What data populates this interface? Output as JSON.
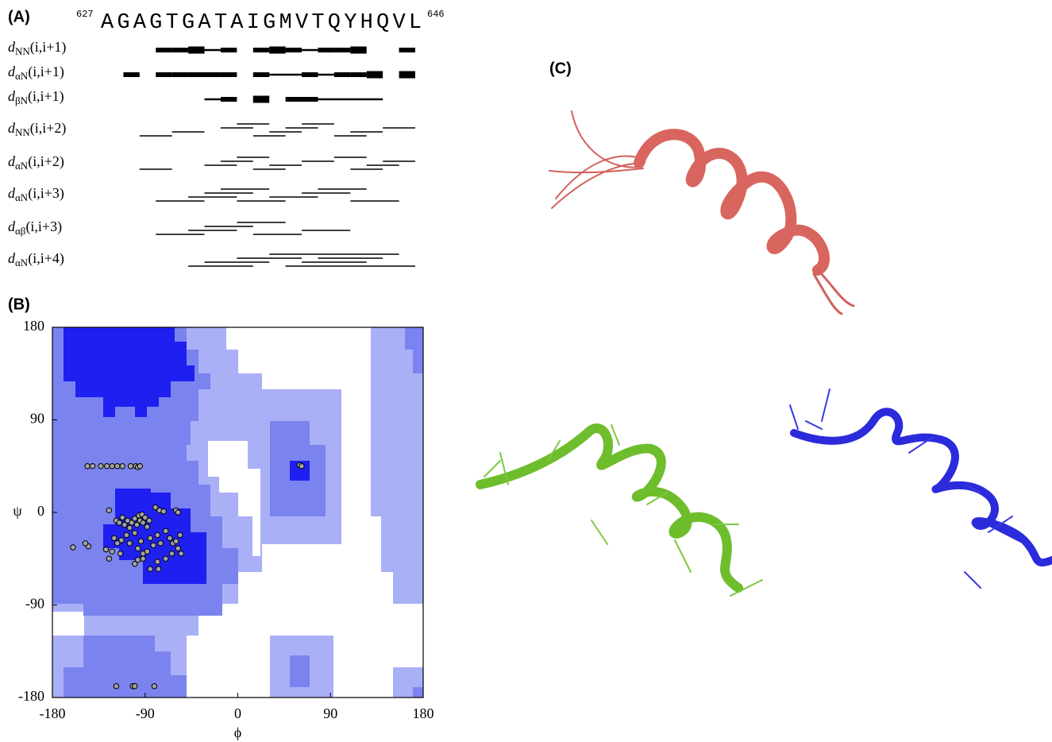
{
  "panel_a": {
    "label": "(A)",
    "start_residue": 627,
    "end_residue": 646,
    "sequence": [
      "A",
      "G",
      "A",
      "G",
      "T",
      "G",
      "A",
      "T",
      "A",
      "I",
      "G",
      "M",
      "V",
      "T",
      "Q",
      "Y",
      "H",
      "Q",
      "V",
      "L"
    ],
    "rows": [
      {
        "symbol": "d",
        "subscript": "NN",
        "range": "(i,i+1)",
        "offset": 1,
        "starts": [
          3,
          4,
          5,
          6,
          7,
          9,
          10,
          11,
          12,
          13,
          14,
          15,
          18
        ],
        "weights": [
          2,
          2,
          3,
          1,
          2,
          2,
          3,
          2,
          1,
          2,
          2,
          3,
          2
        ]
      },
      {
        "symbol": "d",
        "subscript": "αN",
        "range": "(i,i+1)",
        "offset": 1,
        "starts": [
          1,
          3,
          4,
          5,
          6,
          7,
          9,
          10,
          11,
          12,
          13,
          14,
          15,
          16,
          18
        ],
        "weights": [
          2,
          2,
          2,
          2,
          2,
          2,
          2,
          1,
          1,
          2,
          1,
          2,
          2,
          3,
          3
        ]
      },
      {
        "symbol": "d",
        "subscript": "βN",
        "range": "(i,i+1)",
        "offset": 1,
        "starts": [
          6,
          7,
          9,
          11,
          12,
          13,
          14,
          15,
          16
        ],
        "weights": [
          1,
          2,
          3,
          2,
          2,
          1,
          1,
          1,
          1
        ]
      },
      {
        "symbol": "d",
        "subscript": "NN",
        "range": "(i,i+2)",
        "offset": 2,
        "starts": [
          2,
          4,
          7,
          8,
          9,
          10,
          11,
          12,
          14,
          15,
          17
        ]
      },
      {
        "symbol": "d",
        "subscript": "αN",
        "range": "(i,i+2)",
        "offset": 2,
        "starts": [
          2,
          6,
          7,
          8,
          9,
          10,
          12,
          14,
          15,
          16,
          17
        ]
      },
      {
        "symbol": "d",
        "subscript": "αN",
        "range": "(i,i+3)",
        "offset": 3,
        "starts": [
          3,
          5,
          6,
          7,
          8,
          10,
          12,
          13,
          15
        ]
      },
      {
        "symbol": "d",
        "subscript": "αβ",
        "range": "(i,i+3)",
        "offset": 3,
        "starts": [
          3,
          5,
          6,
          8,
          9,
          12
        ]
      },
      {
        "symbol": "d",
        "subscript": "αN",
        "range": "(i,i+4)",
        "offset": 4,
        "starts": [
          5,
          6,
          8,
          10,
          11,
          12,
          13,
          14,
          15
        ]
      }
    ]
  },
  "panel_b": {
    "label": "(B)"
  },
  "panel_c": {
    "label": "(C)"
  },
  "chart_data": {
    "type": "scatter",
    "x_label": "ϕ",
    "y_label": "ψ",
    "color": "#a3a3a3",
    "xlim": [
      -180,
      180
    ],
    "ylim": [
      -180,
      180
    ],
    "xticks": [
      -180,
      -90,
      0,
      90,
      180
    ],
    "yticks": [
      -180,
      -90,
      0,
      90,
      180
    ],
    "x": [
      -146,
      -141,
      -133,
      -127,
      -122,
      -117,
      -112,
      -104,
      -99,
      -97,
      -95,
      60,
      62,
      -125,
      -118,
      -115,
      -112,
      -110,
      -107,
      -105,
      -103,
      -100,
      -98,
      -96,
      -95,
      -93,
      -92,
      -90,
      -88,
      -86,
      -80,
      -76,
      -72,
      -60,
      -58,
      -120,
      -117,
      -113,
      -108,
      -105,
      -100,
      -97,
      -94,
      -92,
      -88,
      -85,
      -82,
      -78,
      -75,
      -70,
      -66,
      -63,
      -60,
      -58,
      -56,
      -64,
      -70,
      -78,
      -85,
      -92,
      -100,
      -114,
      -122,
      -128,
      -145,
      -148,
      -160,
      -125,
      -97,
      -77,
      -55,
      -118,
      -102,
      -100,
      -81
    ],
    "y": [
      45,
      45,
      45,
      45,
      45,
      45,
      45,
      45,
      45,
      44,
      45,
      46,
      45,
      2,
      -8,
      -10,
      -5,
      -12,
      -8,
      -15,
      -10,
      -6,
      -12,
      -3,
      -8,
      -2,
      -10,
      -5,
      -14,
      -8,
      5,
      2,
      1,
      2,
      0,
      -25,
      -30,
      -27,
      -22,
      -30,
      -20,
      -35,
      -28,
      -40,
      -38,
      -25,
      -32,
      -22,
      -30,
      -18,
      -25,
      -30,
      -28,
      -35,
      -22,
      -40,
      -45,
      -48,
      -55,
      -45,
      -50,
      -40,
      -38,
      -36,
      -33,
      -30,
      -34,
      -45,
      -46,
      -55,
      -40,
      -169,
      -169,
      -169,
      -169
    ]
  }
}
